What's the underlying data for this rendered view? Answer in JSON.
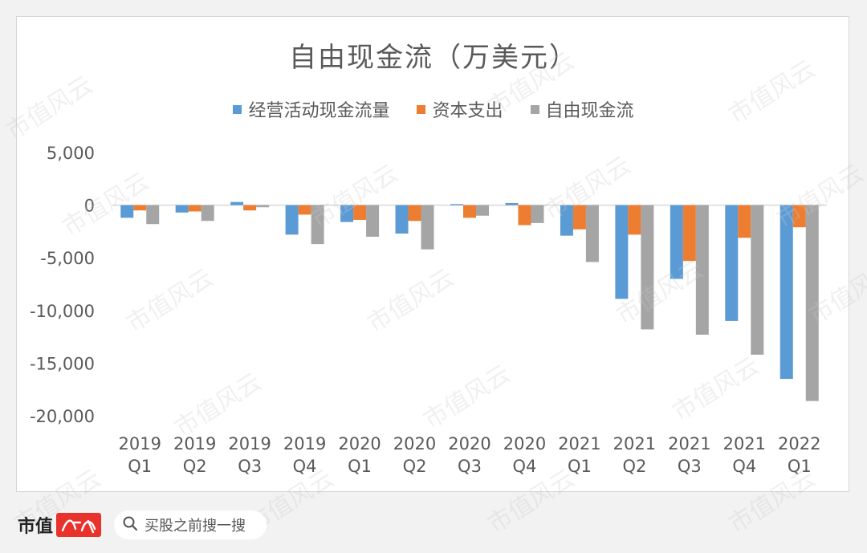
{
  "chart_data": {
    "type": "bar",
    "title": "自由现金流（万美元）",
    "categories": [
      [
        "2019",
        "Q1"
      ],
      [
        "2019",
        "Q2"
      ],
      [
        "2019",
        "Q3"
      ],
      [
        "2019",
        "Q4"
      ],
      [
        "2020",
        "Q1"
      ],
      [
        "2020",
        "Q2"
      ],
      [
        "2020",
        "Q3"
      ],
      [
        "2020",
        "Q4"
      ],
      [
        "2021",
        "Q1"
      ],
      [
        "2021",
        "Q2"
      ],
      [
        "2021",
        "Q3"
      ],
      [
        "2021",
        "Q4"
      ],
      [
        "2022",
        "Q1"
      ]
    ],
    "series": [
      {
        "name": "经营活动现金流量",
        "color": "#5b9bd5",
        "values": [
          -1200,
          -700,
          300,
          -2800,
          -1600,
          -2700,
          100,
          200,
          -2900,
          -8900,
          -7000,
          -11000,
          -16500
        ]
      },
      {
        "name": "资本支出",
        "color": "#ed7d31",
        "values": [
          -500,
          -600,
          -500,
          -900,
          -1400,
          -1500,
          -1200,
          -1900,
          -2300,
          -2800,
          -5300,
          -3100,
          -2100
        ]
      },
      {
        "name": "自由现金流",
        "color": "#a5a5a5",
        "values": [
          -1800,
          -1500,
          -200,
          -3700,
          -3000,
          -4200,
          -1000,
          -1700,
          -5400,
          -11800,
          -12300,
          -14200,
          -18600
        ]
      }
    ],
    "yticks": [
      "5,000",
      "0",
      "-5,000",
      "-10,000",
      "-15,000",
      "-20,000"
    ],
    "ylim": [
      -20000,
      5000
    ],
    "grid": false,
    "legend_position": "top"
  },
  "footer": {
    "brand_text": "市值",
    "brand_logo_text": "风云",
    "search_icon": "search-icon",
    "search_text": "买股之前搜一搜"
  },
  "watermark_text": "市值风云"
}
